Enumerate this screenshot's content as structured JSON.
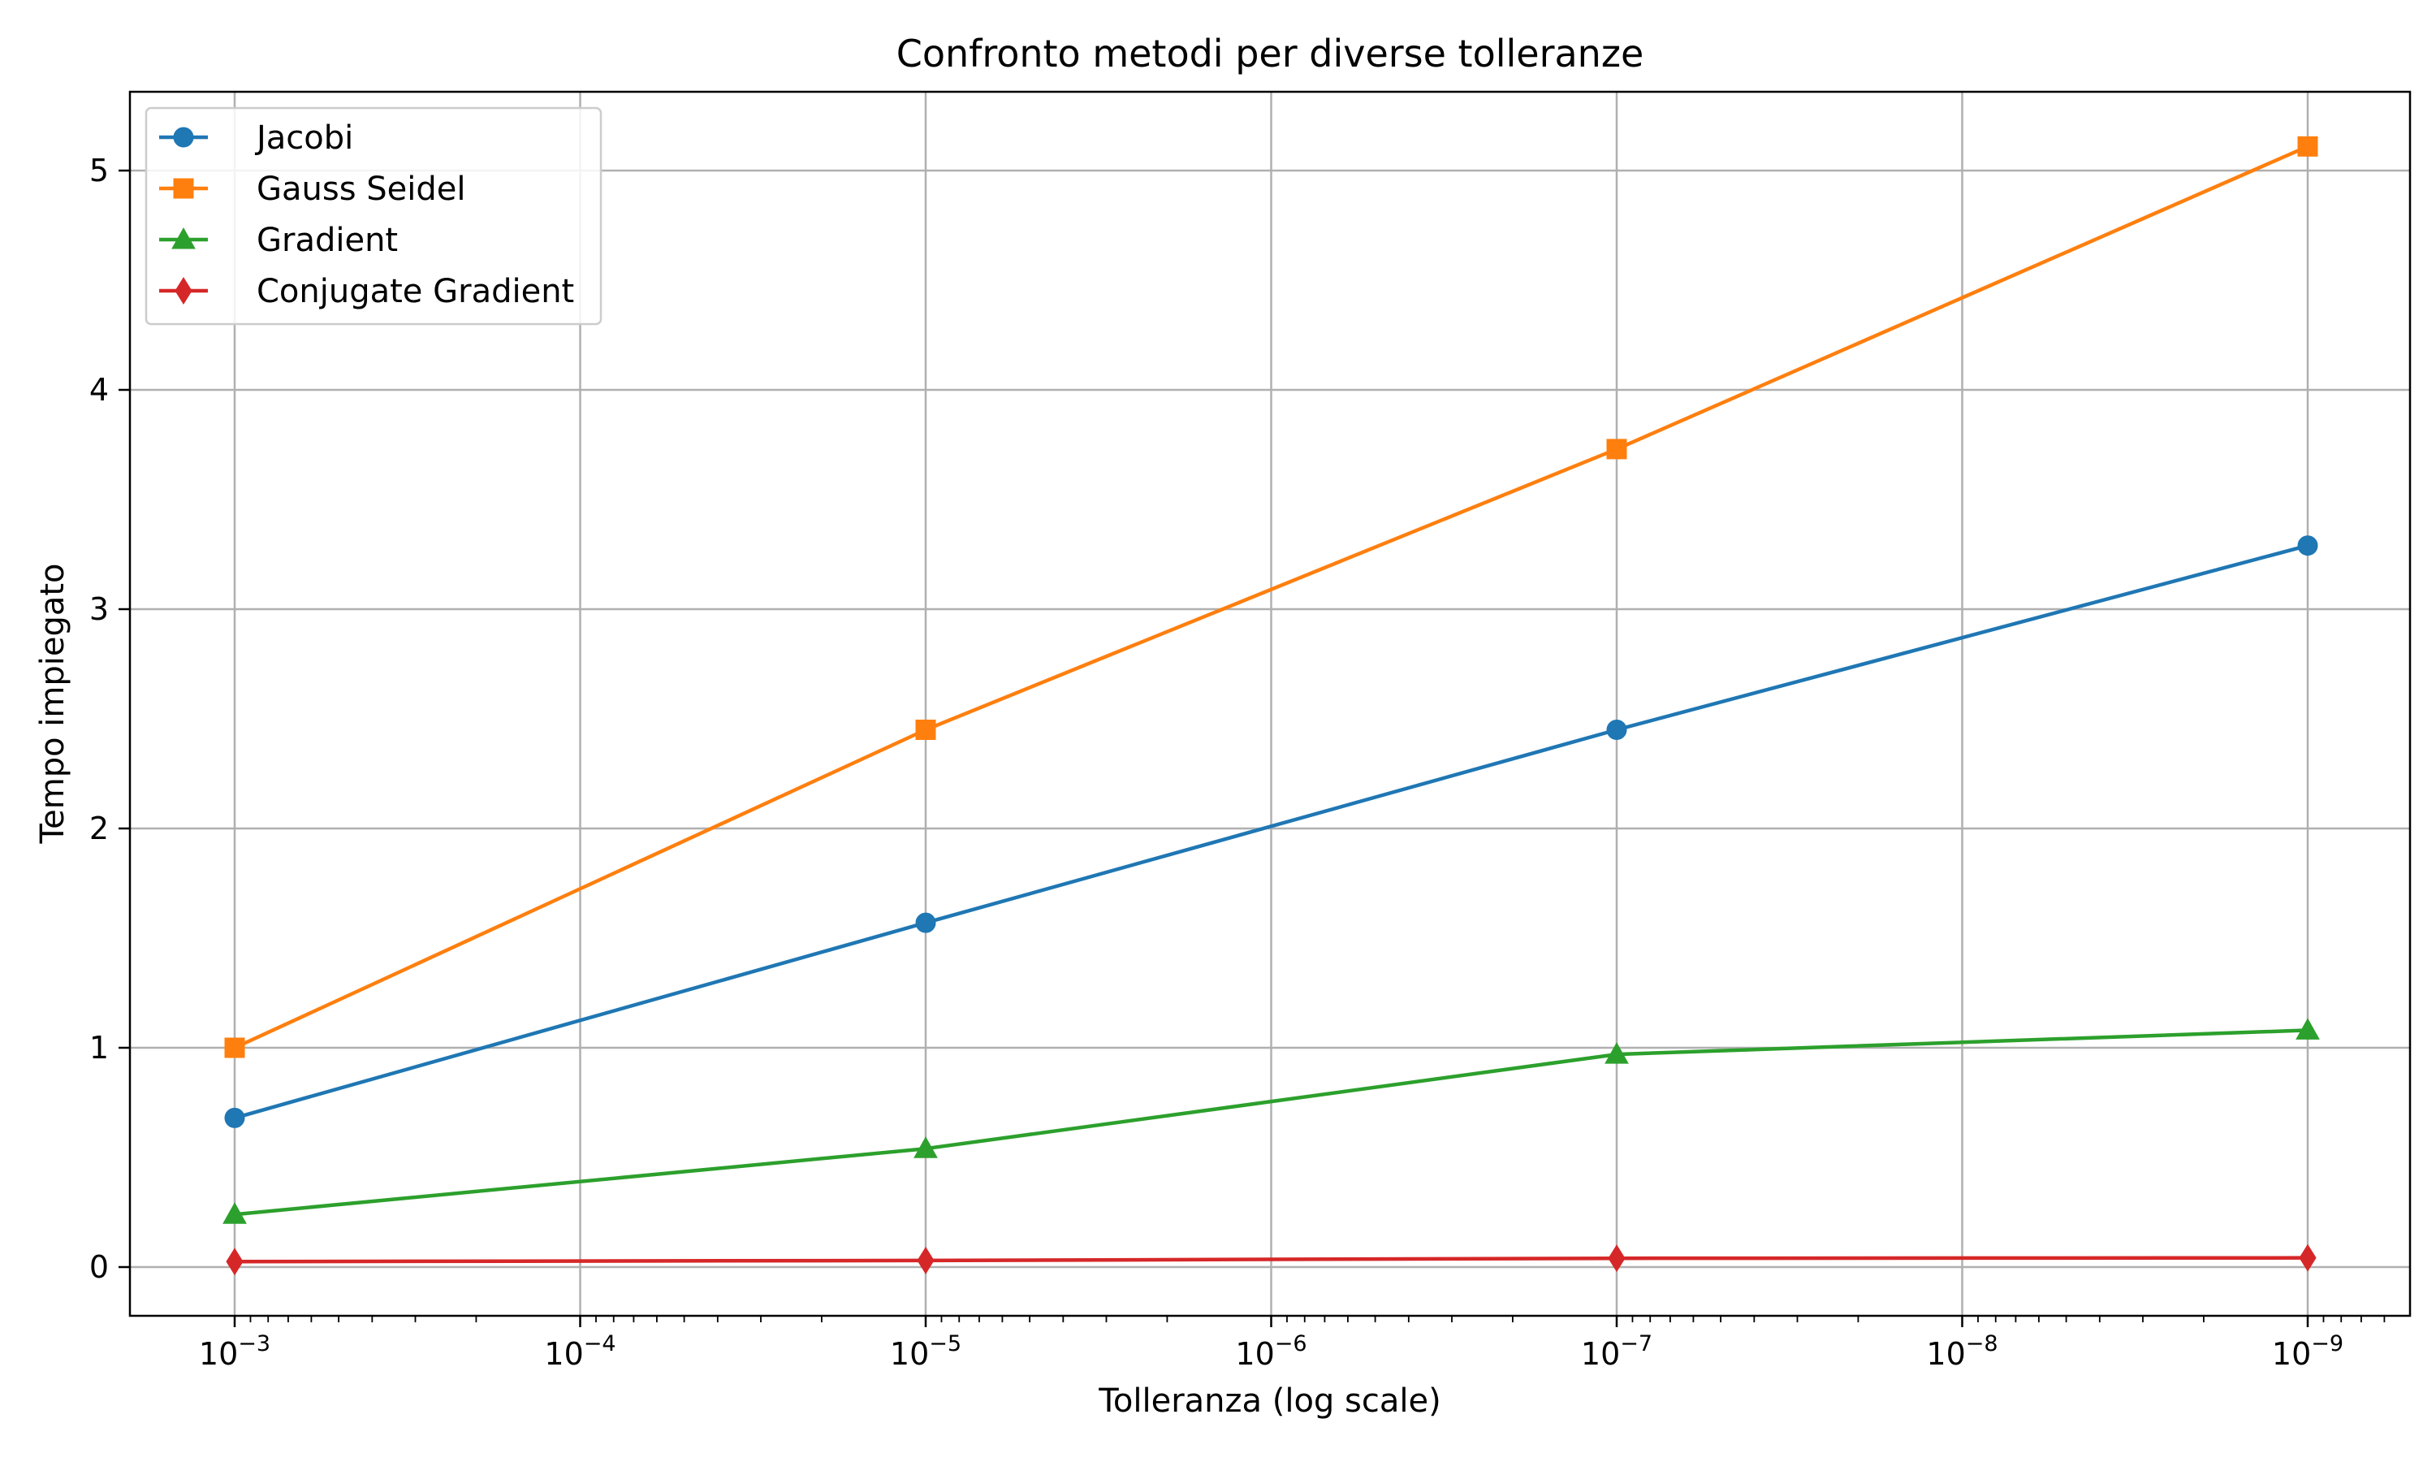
{
  "chart_data": {
    "type": "line",
    "title": "Confronto metodi per diverse tolleranze",
    "xlabel": "Tolleranza (log scale)",
    "ylabel": "Tempo impiegato",
    "x_scale": "log",
    "x_axis_inverted": true,
    "x": [
      0.001,
      1e-05,
      1e-07,
      1e-09
    ],
    "x_ticks": [
      {
        "base": "10",
        "exp": "−3"
      },
      {
        "base": "10",
        "exp": "−4"
      },
      {
        "base": "10",
        "exp": "−5"
      },
      {
        "base": "10",
        "exp": "−6"
      },
      {
        "base": "10",
        "exp": "−7"
      },
      {
        "base": "10",
        "exp": "−8"
      },
      {
        "base": "10",
        "exp": "−9"
      }
    ],
    "y_ticks": [
      "0",
      "1",
      "2",
      "3",
      "4",
      "5"
    ],
    "ylim": [
      -0.23,
      5.37
    ],
    "grid": true,
    "legend_position": "top-left",
    "series": [
      {
        "name": "Jacobi",
        "color": "#1f77b4",
        "marker": "circle",
        "values": [
          0.68,
          1.57,
          2.45,
          3.29
        ]
      },
      {
        "name": "Gauss Seidel",
        "color": "#ff7f0e",
        "marker": "square",
        "values": [
          1.0,
          2.45,
          3.73,
          5.11
        ]
      },
      {
        "name": "Gradient",
        "color": "#2ca02c",
        "marker": "triangle",
        "values": [
          0.24,
          0.54,
          0.97,
          1.08
        ]
      },
      {
        "name": "Conjugate Gradient",
        "color": "#d62728",
        "marker": "diamond",
        "values": [
          0.025,
          0.03,
          0.04,
          0.042
        ]
      }
    ]
  }
}
